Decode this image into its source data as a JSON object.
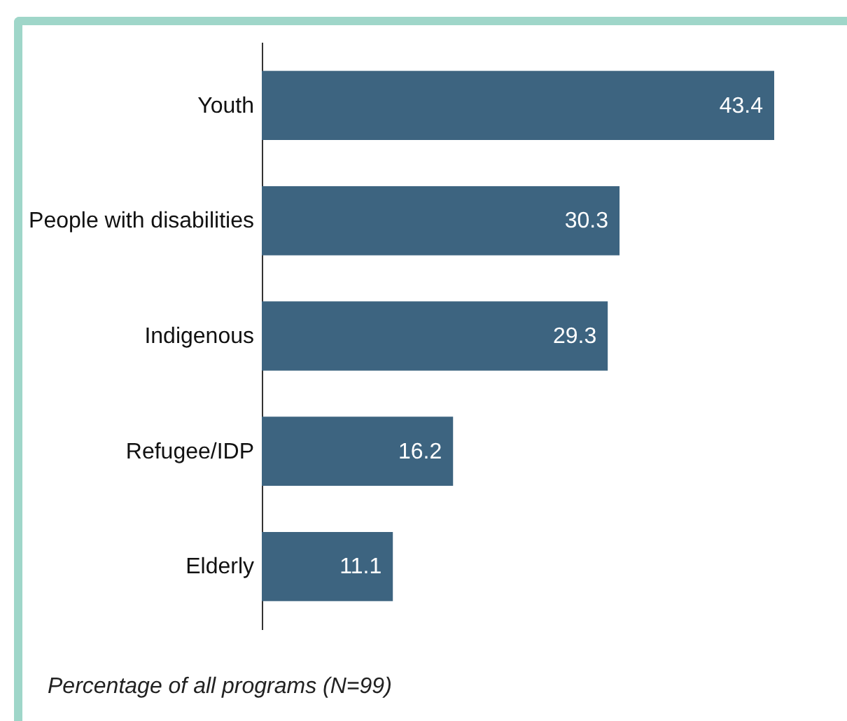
{
  "chart_data": {
    "type": "bar",
    "orientation": "horizontal",
    "categories": [
      "Youth",
      "People with disabilities",
      "Indigenous",
      "Refugee/IDP",
      "Elderly"
    ],
    "values": [
      43.4,
      30.3,
      29.3,
      16.2,
      11.1
    ],
    "color": "#3d6480",
    "data_labels": true,
    "annotations": [
      "Percentage of all programs (N=99)"
    ]
  }
}
